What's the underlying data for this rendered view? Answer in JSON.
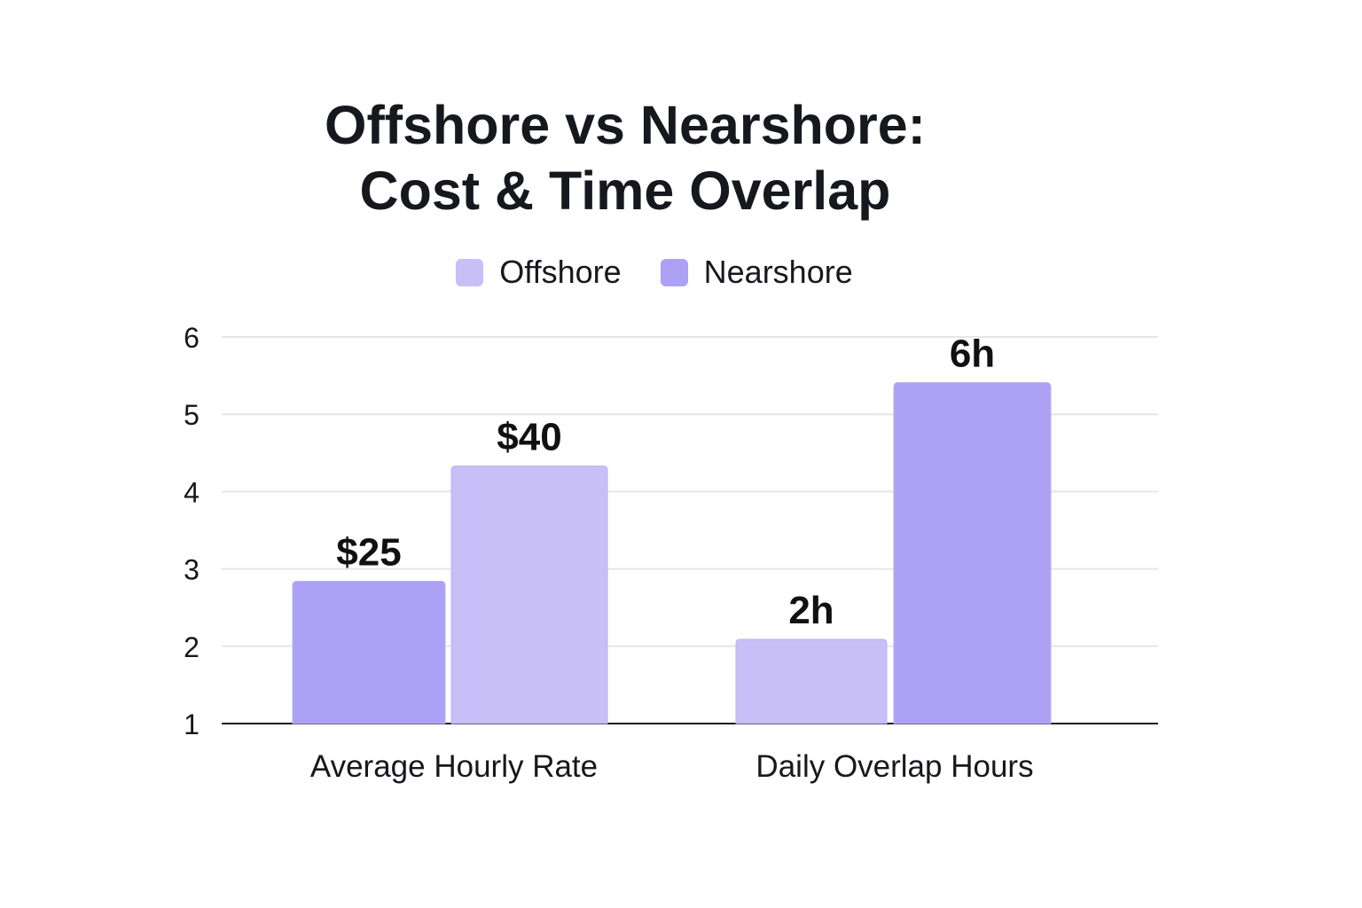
{
  "chart_data": {
    "type": "bar",
    "title": "Offshore vs Nearshore: Cost & Time Overlap",
    "xlabel": "",
    "ylabel": "",
    "categories": [
      "Average Hourly Rate",
      "Daily Overlap Hours"
    ],
    "series": [
      {
        "name": "Offshore",
        "color": "#c8bff9",
        "values": [
          4.33,
          2.09
        ]
      },
      {
        "name": "Nearshore",
        "color": "#aca1f4",
        "values": [
          2.84,
          5.41
        ]
      }
    ],
    "bar_order": [
      [
        {
          "series": 1,
          "label": "$25"
        },
        {
          "series": 0,
          "label": "$40"
        }
      ],
      [
        {
          "series": 0,
          "label": "2h"
        },
        {
          "series": 1,
          "label": "6h"
        }
      ]
    ],
    "ylim": [
      1,
      6
    ],
    "yticks": [
      1,
      2,
      3,
      4,
      5,
      6
    ],
    "grid": true,
    "legend_position": "top-center"
  }
}
